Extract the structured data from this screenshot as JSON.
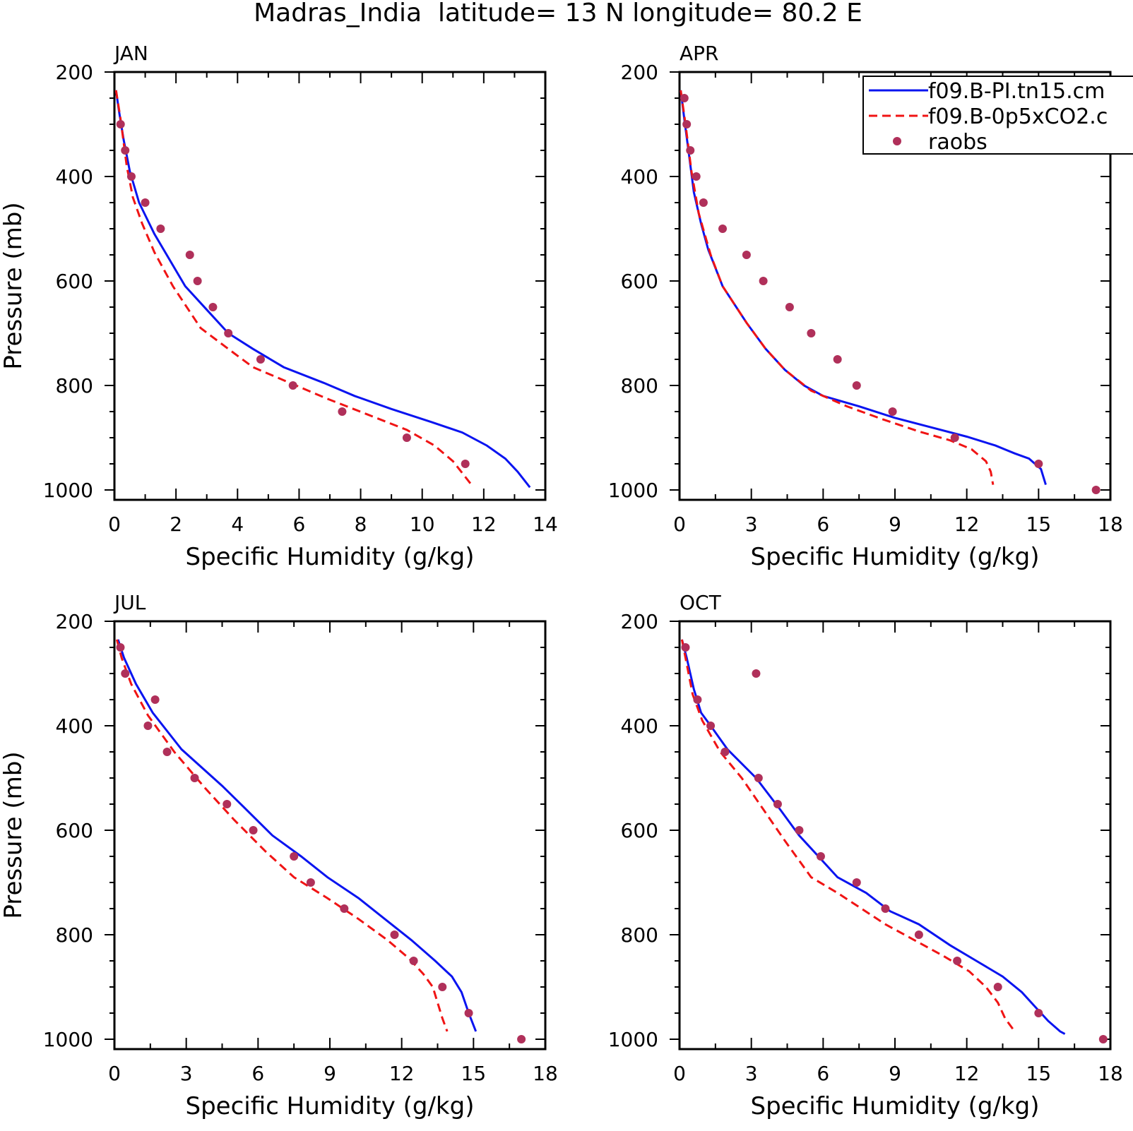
{
  "title": "Madras_India  latitude= 13 N longitude= 80.2 E",
  "colors": {
    "model_solid": "#0a14f0",
    "model_dashed": "#f01414",
    "raobs": "#b0305a",
    "axis": "#000000"
  },
  "legend": {
    "placement": "top-right of APR panel",
    "entries": [
      {
        "label": "f09.B-PI.tn15.cm",
        "style": "solid",
        "color": "#0a14f0"
      },
      {
        "label": "f09.B-0p5xCO2.c",
        "style": "dashed",
        "color": "#f01414"
      },
      {
        "label": "raobs",
        "style": "dot",
        "color": "#b0305a"
      }
    ]
  },
  "chart_data": [
    {
      "type": "line",
      "panel": "JAN",
      "xlabel": "Specific Humidity (g/kg)",
      "ylabel": "Pressure (mb)",
      "xlim": [
        0,
        14
      ],
      "ylim": [
        1000,
        200
      ],
      "y_inverted": true,
      "x_ticks": [
        0,
        2,
        4,
        6,
        8,
        10,
        12,
        14
      ],
      "y_ticks": [
        200,
        400,
        600,
        800,
        1000
      ],
      "series": [
        {
          "name": "f09.B-PI.tn15.cm",
          "style": "solid",
          "points": [
            [
              0.05,
              235
            ],
            [
              0.15,
              275
            ],
            [
              0.3,
              330
            ],
            [
              0.5,
              390
            ],
            [
              0.8,
              450
            ],
            [
              1.3,
              510
            ],
            [
              1.8,
              560
            ],
            [
              2.3,
              610
            ],
            [
              3.0,
              655
            ],
            [
              3.7,
              700
            ],
            [
              4.5,
              730
            ],
            [
              5.5,
              765
            ],
            [
              6.8,
              795
            ],
            [
              7.8,
              820
            ],
            [
              9.0,
              845
            ],
            [
              10.3,
              870
            ],
            [
              11.3,
              890
            ],
            [
              12.1,
              915
            ],
            [
              12.7,
              940
            ],
            [
              13.1,
              965
            ],
            [
              13.5,
              995
            ]
          ]
        },
        {
          "name": "f09.B-0p5xCO2.c",
          "style": "dashed",
          "points": [
            [
              0.05,
              235
            ],
            [
              0.2,
              290
            ],
            [
              0.4,
              380
            ],
            [
              0.6,
              440
            ],
            [
              0.9,
              490
            ],
            [
              1.3,
              545
            ],
            [
              1.9,
              610
            ],
            [
              2.8,
              690
            ],
            [
              3.7,
              730
            ],
            [
              4.5,
              765
            ],
            [
              5.5,
              790
            ],
            [
              6.9,
              825
            ],
            [
              8.2,
              855
            ],
            [
              9.5,
              885
            ],
            [
              10.4,
              915
            ],
            [
              11.0,
              945
            ],
            [
              11.6,
              990
            ]
          ]
        },
        {
          "name": "raobs",
          "style": "dots",
          "points": [
            [
              0.2,
              300
            ],
            [
              0.35,
              350
            ],
            [
              0.55,
              400
            ],
            [
              1.0,
              450
            ],
            [
              1.5,
              500
            ],
            [
              2.45,
              550
            ],
            [
              2.7,
              600
            ],
            [
              3.2,
              650
            ],
            [
              3.7,
              700
            ],
            [
              4.75,
              750
            ],
            [
              5.8,
              800
            ],
            [
              7.4,
              850
            ],
            [
              9.5,
              900
            ],
            [
              11.4,
              950
            ]
          ]
        }
      ]
    },
    {
      "type": "line",
      "panel": "APR",
      "xlabel": "Specific Humidity (g/kg)",
      "ylabel": "",
      "xlim": [
        0,
        18
      ],
      "ylim": [
        1000,
        200
      ],
      "y_inverted": true,
      "x_ticks": [
        0,
        3,
        6,
        9,
        12,
        15,
        18
      ],
      "y_ticks": [
        200,
        400,
        600,
        800,
        1000
      ],
      "series": [
        {
          "name": "f09.B-PI.tn15.cm",
          "style": "solid",
          "points": [
            [
              0.05,
              235
            ],
            [
              0.2,
              290
            ],
            [
              0.4,
              360
            ],
            [
              0.6,
              430
            ],
            [
              0.9,
              490
            ],
            [
              1.2,
              540
            ],
            [
              1.8,
              610
            ],
            [
              2.8,
              680
            ],
            [
              3.6,
              730
            ],
            [
              4.4,
              770
            ],
            [
              5.2,
              800
            ],
            [
              6.0,
              820
            ],
            [
              7.5,
              840
            ],
            [
              9.0,
              862
            ],
            [
              10.5,
              880
            ],
            [
              12.0,
              898
            ],
            [
              13.2,
              915
            ],
            [
              14.0,
              930
            ],
            [
              14.6,
              940
            ],
            [
              15.1,
              960
            ],
            [
              15.3,
              990
            ]
          ]
        },
        {
          "name": "f09.B-0p5xCO2.c",
          "style": "dashed",
          "points": [
            [
              0.05,
              235
            ],
            [
              0.25,
              300
            ],
            [
              0.5,
              390
            ],
            [
              0.8,
              470
            ],
            [
              1.3,
              550
            ],
            [
              1.8,
              610
            ],
            [
              2.8,
              680
            ],
            [
              3.6,
              730
            ],
            [
              4.4,
              770
            ],
            [
              5.5,
              810
            ],
            [
              7.0,
              840
            ],
            [
              8.5,
              865
            ],
            [
              10.0,
              888
            ],
            [
              11.3,
              905
            ],
            [
              12.2,
              922
            ],
            [
              12.8,
              945
            ],
            [
              13.0,
              965
            ],
            [
              13.1,
              990
            ]
          ]
        },
        {
          "name": "raobs",
          "style": "dots",
          "points": [
            [
              0.2,
              250
            ],
            [
              0.3,
              300
            ],
            [
              0.45,
              350
            ],
            [
              0.7,
              400
            ],
            [
              1.0,
              450
            ],
            [
              1.8,
              500
            ],
            [
              2.8,
              550
            ],
            [
              3.5,
              600
            ],
            [
              4.6,
              650
            ],
            [
              5.5,
              700
            ],
            [
              6.6,
              750
            ],
            [
              7.4,
              800
            ],
            [
              8.9,
              850
            ],
            [
              11.5,
              900
            ],
            [
              15.0,
              950
            ],
            [
              17.4,
              1000
            ]
          ]
        }
      ]
    },
    {
      "type": "line",
      "panel": "JUL",
      "xlabel": "Specific Humidity (g/kg)",
      "ylabel": "Pressure (mb)",
      "xlim": [
        0,
        18
      ],
      "ylim": [
        1000,
        200
      ],
      "y_inverted": true,
      "x_ticks": [
        0,
        3,
        6,
        9,
        12,
        15,
        18
      ],
      "y_ticks": [
        200,
        400,
        600,
        800,
        1000
      ],
      "series": [
        {
          "name": "f09.B-PI.tn15.cm",
          "style": "solid",
          "points": [
            [
              0.15,
              235
            ],
            [
              0.4,
              270
            ],
            [
              0.9,
              320
            ],
            [
              1.6,
              375
            ],
            [
              2.8,
              445
            ],
            [
              4.5,
              515
            ],
            [
              5.5,
              560
            ],
            [
              6.6,
              610
            ],
            [
              7.8,
              650
            ],
            [
              8.9,
              690
            ],
            [
              10.2,
              730
            ],
            [
              11.3,
              770
            ],
            [
              12.4,
              810
            ],
            [
              13.4,
              850
            ],
            [
              14.1,
              880
            ],
            [
              14.5,
              910
            ],
            [
              14.8,
              950
            ],
            [
              15.1,
              985
            ]
          ]
        },
        {
          "name": "f09.B-0p5xCO2.c",
          "style": "dashed",
          "points": [
            [
              0.1,
              235
            ],
            [
              0.3,
              270
            ],
            [
              0.7,
              320
            ],
            [
              1.4,
              380
            ],
            [
              2.5,
              450
            ],
            [
              3.8,
              520
            ],
            [
              5.0,
              580
            ],
            [
              6.3,
              640
            ],
            [
              7.5,
              690
            ],
            [
              8.9,
              730
            ],
            [
              10.2,
              770
            ],
            [
              11.4,
              810
            ],
            [
              12.3,
              845
            ],
            [
              12.9,
              875
            ],
            [
              13.3,
              900
            ],
            [
              13.5,
              930
            ],
            [
              13.7,
              960
            ],
            [
              13.9,
              985
            ]
          ]
        },
        {
          "name": "raobs",
          "style": "dots",
          "points": [
            [
              0.25,
              250
            ],
            [
              0.45,
              300
            ],
            [
              1.7,
              350
            ],
            [
              1.4,
              400
            ],
            [
              2.2,
              450
            ],
            [
              3.35,
              500
            ],
            [
              4.7,
              550
            ],
            [
              5.8,
              600
            ],
            [
              7.5,
              650
            ],
            [
              8.2,
              700
            ],
            [
              9.6,
              750
            ],
            [
              11.7,
              800
            ],
            [
              12.5,
              850
            ],
            [
              13.7,
              900
            ],
            [
              14.8,
              950
            ],
            [
              17.0,
              1000
            ]
          ]
        }
      ]
    },
    {
      "type": "line",
      "panel": "OCT",
      "xlabel": "Specific Humidity (g/kg)",
      "ylabel": "",
      "xlim": [
        0,
        18
      ],
      "ylim": [
        1000,
        200
      ],
      "y_inverted": true,
      "x_ticks": [
        0,
        3,
        6,
        9,
        12,
        15,
        18
      ],
      "y_ticks": [
        200,
        400,
        600,
        800,
        1000
      ],
      "series": [
        {
          "name": "f09.B-PI.tn15.cm",
          "style": "solid",
          "points": [
            [
              0.1,
              235
            ],
            [
              0.3,
              270
            ],
            [
              0.6,
              330
            ],
            [
              0.9,
              375
            ],
            [
              1.3,
              400
            ],
            [
              2.0,
              445
            ],
            [
              3.2,
              500
            ],
            [
              4.2,
              560
            ],
            [
              5.0,
              610
            ],
            [
              5.8,
              650
            ],
            [
              6.6,
              690
            ],
            [
              7.8,
              720
            ],
            [
              8.8,
              755
            ],
            [
              10.0,
              780
            ],
            [
              11.3,
              820
            ],
            [
              12.4,
              850
            ],
            [
              13.5,
              880
            ],
            [
              14.3,
              910
            ],
            [
              14.9,
              940
            ],
            [
              15.4,
              965
            ],
            [
              15.9,
              985
            ],
            [
              16.1,
              990
            ]
          ]
        },
        {
          "name": "f09.B-0p5xCO2.c",
          "style": "dashed",
          "points": [
            [
              0.1,
              235
            ],
            [
              0.25,
              270
            ],
            [
              0.55,
              340
            ],
            [
              0.95,
              390
            ],
            [
              1.7,
              450
            ],
            [
              2.6,
              500
            ],
            [
              3.5,
              560
            ],
            [
              4.4,
              620
            ],
            [
              5.5,
              690
            ],
            [
              6.6,
              720
            ],
            [
              7.6,
              750
            ],
            [
              8.6,
              780
            ],
            [
              9.8,
              810
            ],
            [
              11.0,
              840
            ],
            [
              12.1,
              870
            ],
            [
              12.8,
              900
            ],
            [
              13.3,
              930
            ],
            [
              13.6,
              960
            ],
            [
              14.0,
              985
            ]
          ]
        },
        {
          "name": "raobs",
          "style": "dots",
          "points": [
            [
              0.25,
              250
            ],
            [
              3.2,
              300
            ],
            [
              0.75,
              350
            ],
            [
              1.3,
              400
            ],
            [
              1.9,
              450
            ],
            [
              3.3,
              500
            ],
            [
              4.1,
              550
            ],
            [
              5.0,
              600
            ],
            [
              5.9,
              650
            ],
            [
              7.4,
              700
            ],
            [
              8.6,
              750
            ],
            [
              10.0,
              800
            ],
            [
              11.6,
              850
            ],
            [
              13.3,
              900
            ],
            [
              15.0,
              950
            ],
            [
              17.7,
              1000
            ]
          ]
        }
      ]
    }
  ]
}
